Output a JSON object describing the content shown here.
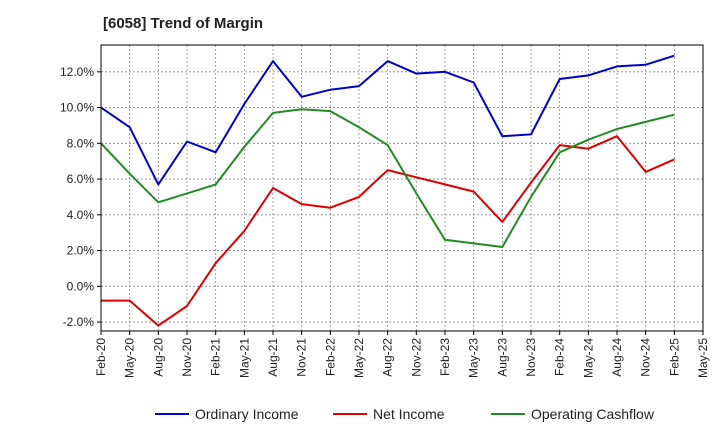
{
  "chart_data": {
    "type": "line",
    "title": "[6058]  Trend of Margin",
    "xlabel": "",
    "ylabel": "",
    "x": [
      "Feb-20",
      "May-20",
      "Aug-20",
      "Nov-20",
      "Feb-21",
      "May-21",
      "Aug-21",
      "Nov-21",
      "Feb-22",
      "May-22",
      "Aug-22",
      "Nov-22",
      "Feb-23",
      "May-23",
      "Aug-23",
      "Nov-23",
      "Feb-24",
      "May-24",
      "Aug-24",
      "Nov-24",
      "Feb-25",
      "May-25"
    ],
    "ylim": [
      -2.5,
      13.5
    ],
    "yticks": [
      -2.0,
      0.0,
      2.0,
      4.0,
      6.0,
      8.0,
      10.0,
      12.0
    ],
    "ytick_labels": [
      "-2.0%",
      "0.0%",
      "2.0%",
      "4.0%",
      "6.0%",
      "8.0%",
      "10.0%",
      "12.0%"
    ],
    "grid": true,
    "legend_position": "bottom",
    "series": [
      {
        "name": "Ordinary Income",
        "color": "#0000cc",
        "values": [
          10.0,
          8.9,
          5.7,
          8.1,
          7.5,
          10.2,
          12.6,
          10.6,
          11.0,
          11.2,
          12.6,
          11.9,
          12.0,
          11.4,
          8.4,
          8.5,
          11.6,
          11.8,
          12.3,
          12.4,
          12.9,
          null
        ]
      },
      {
        "name": "Net Income",
        "color": "#dd0000",
        "values": [
          -0.8,
          -0.8,
          -2.2,
          -1.1,
          1.3,
          3.1,
          5.5,
          4.6,
          4.4,
          5.0,
          6.5,
          6.1,
          5.7,
          5.3,
          3.6,
          5.8,
          7.9,
          7.7,
          8.4,
          6.4,
          7.1,
          null
        ]
      },
      {
        "name": "Operating Cashflow",
        "color": "#228b22",
        "values": [
          8.0,
          6.3,
          4.7,
          5.2,
          5.7,
          7.8,
          9.7,
          9.9,
          9.8,
          8.9,
          7.9,
          5.2,
          2.6,
          2.4,
          2.2,
          5.0,
          7.5,
          8.2,
          8.8,
          9.2,
          9.6,
          null
        ]
      }
    ]
  }
}
